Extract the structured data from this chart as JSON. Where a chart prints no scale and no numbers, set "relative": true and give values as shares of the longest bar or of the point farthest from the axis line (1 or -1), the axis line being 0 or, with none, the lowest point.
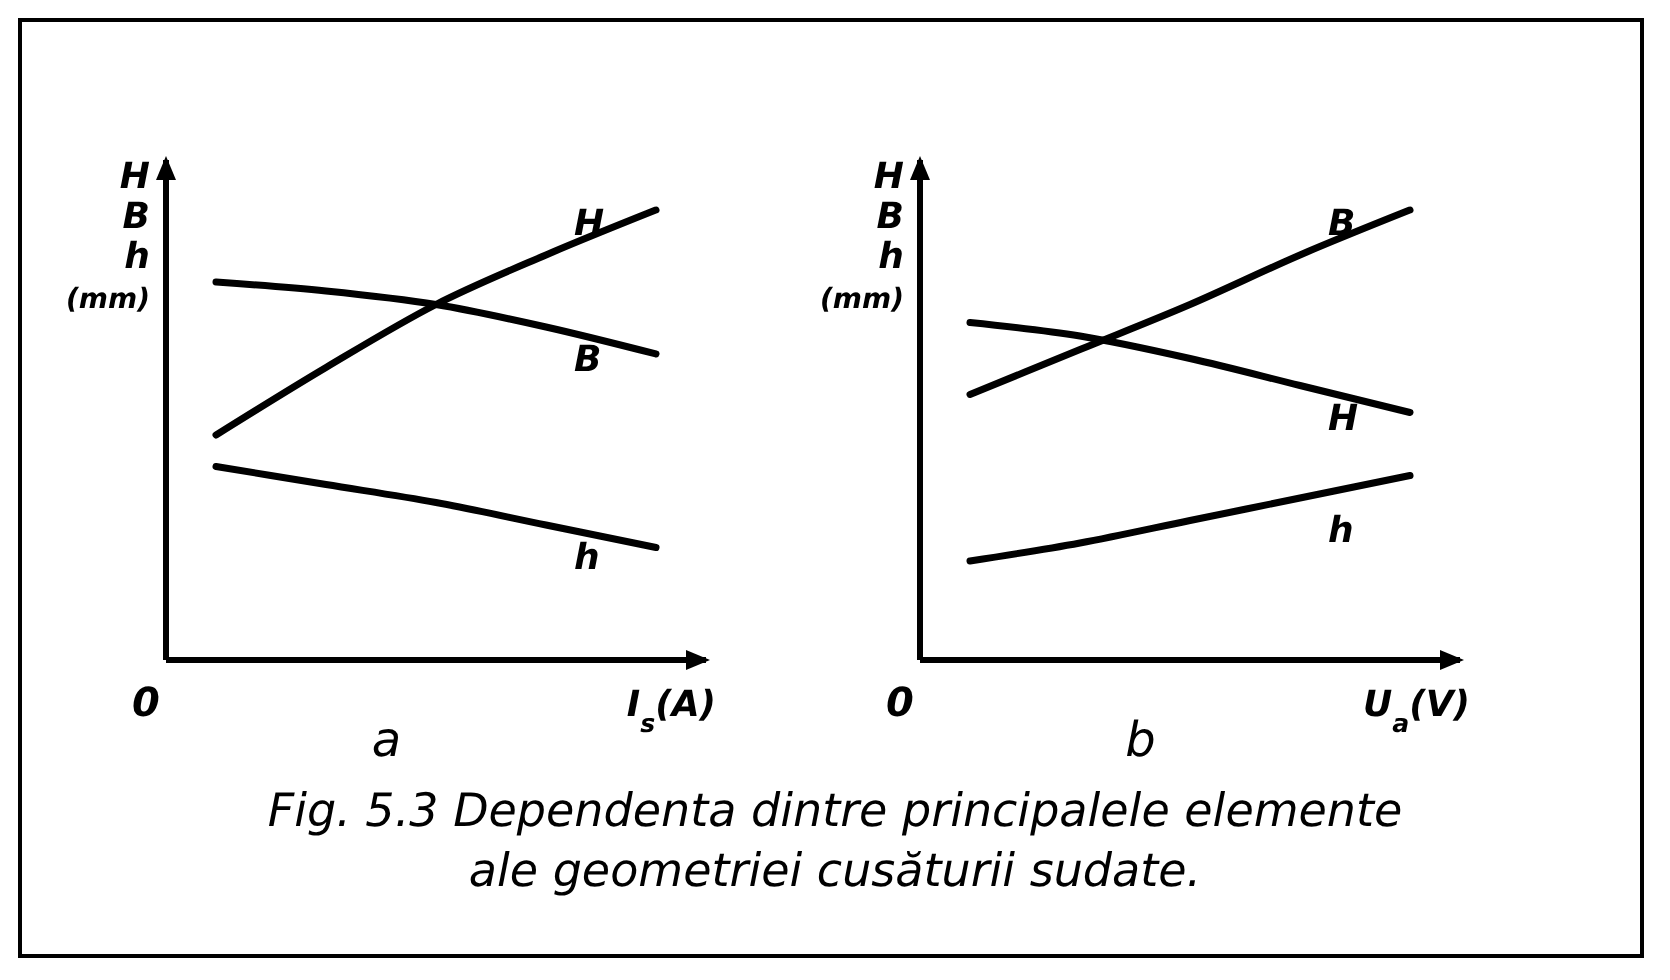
{
  "chart_data": [
    {
      "type": "line",
      "title": "a",
      "xlabel": "I$_{s}$(A)",
      "ylabel": "H B h (mm)",
      "relative": true,
      "categories": [
        null,
        null,
        null,
        null,
        null
      ],
      "annotations": [
        "0"
      ],
      "series": [
        {
          "name": "H",
          "color": "#000000",
          "values": [
            0.5,
            0.65,
            0.79,
            0.9,
            1.0
          ]
        },
        {
          "name": "B",
          "color": "#000000",
          "values": [
            0.84,
            0.82,
            0.79,
            0.74,
            0.68
          ]
        },
        {
          "name": "h",
          "color": "#000000",
          "values": [
            0.43,
            0.39,
            0.35,
            0.3,
            0.25
          ]
        }
      ]
    },
    {
      "type": "line",
      "title": "b",
      "xlabel": "U$_{a}$(V)",
      "ylabel": "H B h (mm)",
      "relative": true,
      "categories": [
        null,
        null,
        null,
        null,
        null
      ],
      "annotations": [
        "0",
        "Fig. 5.3 Dependenta dintre principalele elemente ale geometriei cusăturii sudate."
      ],
      "series": [
        {
          "name": "B",
          "color": "#000000",
          "values": [
            0.59,
            0.69,
            0.79,
            0.9,
            1.0
          ]
        },
        {
          "name": "H",
          "color": "#000000",
          "values": [
            0.75,
            0.72,
            0.67,
            0.61,
            0.55
          ]
        },
        {
          "name": "h",
          "color": "#000000",
          "values": [
            0.22,
            0.26,
            0.31,
            0.36,
            0.41
          ]
        }
      ]
    }
  ]
}
